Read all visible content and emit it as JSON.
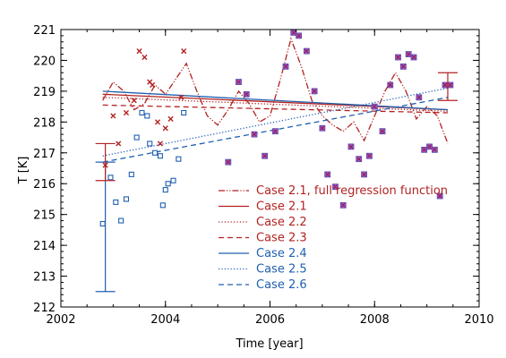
{
  "chart_data": {
    "type": "scatter",
    "xlabel": "Time [year]",
    "ylabel": "T [K]",
    "xlim": [
      2002,
      2010
    ],
    "ylim": [
      212,
      221
    ],
    "x_ticks": [
      2002,
      2004,
      2006,
      2008,
      2010
    ],
    "y_ticks": [
      212,
      213,
      214,
      215,
      216,
      217,
      218,
      219,
      220,
      221
    ],
    "x_minor_step": 0.5,
    "y_minor_step": 0.2,
    "legend_position": "bottom-right",
    "colors": {
      "red": "#b22222",
      "blue": "#2060b0",
      "magenta": "#a855c8"
    },
    "series": [
      {
        "name": "Case 2.1, full regression function",
        "kind": "line",
        "color": "#b22222",
        "dash": "dashdotdot",
        "x": [
          2002.8,
          2003.0,
          2003.2,
          2003.4,
          2003.6,
          2003.8,
          2004.0,
          2004.2,
          2004.4,
          2004.6,
          2004.8,
          2005.0,
          2005.2,
          2005.4,
          2005.6,
          2005.8,
          2006.0,
          2006.2,
          2006.4,
          2006.6,
          2006.8,
          2007.0,
          2007.2,
          2007.4,
          2007.6,
          2007.8,
          2008.0,
          2008.2,
          2008.4,
          2008.6,
          2008.8,
          2009.0,
          2009.2,
          2009.4
        ],
        "y": [
          218.7,
          219.3,
          219.0,
          218.4,
          218.6,
          219.2,
          218.9,
          219.4,
          219.9,
          219.0,
          218.2,
          217.9,
          218.4,
          219.0,
          218.6,
          218.0,
          218.2,
          219.4,
          220.7,
          219.8,
          218.7,
          218.2,
          217.9,
          217.7,
          218.0,
          217.4,
          218.2,
          219.0,
          219.6,
          219.0,
          218.1,
          218.5,
          218.2,
          217.3
        ]
      },
      {
        "name": "Case 2.1",
        "kind": "line",
        "color": "#b22222",
        "dash": "solid",
        "x": [
          2002.8,
          2009.4
        ],
        "y": [
          218.9,
          218.4
        ]
      },
      {
        "name": "Case 2.2",
        "kind": "line",
        "color": "#b22222",
        "dash": "dotted",
        "x": [
          2002.8,
          2009.4
        ],
        "y": [
          218.8,
          218.35
        ]
      },
      {
        "name": "Case 2.3",
        "kind": "line",
        "color": "#b22222",
        "dash": "dashed",
        "x": [
          2002.8,
          2009.4
        ],
        "y": [
          218.55,
          218.3
        ]
      },
      {
        "name": "Case 2.4",
        "kind": "line",
        "color": "#2060b0",
        "dash": "solid",
        "x": [
          2002.8,
          2009.4
        ],
        "y": [
          219.0,
          218.4
        ]
      },
      {
        "name": "Case 2.5",
        "kind": "line",
        "color": "#2060b0",
        "dash": "dotted",
        "x": [
          2002.8,
          2009.4
        ],
        "y": [
          216.9,
          219.1
        ]
      },
      {
        "name": "Case 2.6",
        "kind": "line",
        "color": "#2060b0",
        "dash": "dashed",
        "x": [
          2002.8,
          2009.4
        ],
        "y": [
          216.7,
          218.8
        ]
      }
    ],
    "points": {
      "red_x": {
        "marker": "x",
        "color": "#b22222",
        "x": [
          2002.85,
          2003.0,
          2003.1,
          2003.25,
          2003.4,
          2003.5,
          2003.6,
          2003.7,
          2003.75,
          2003.85,
          2003.9,
          2004.0,
          2004.1,
          2004.3,
          2004.35
        ],
        "y": [
          216.6,
          218.2,
          217.3,
          218.3,
          218.7,
          220.3,
          220.1,
          219.3,
          219.2,
          218.0,
          217.3,
          217.8,
          218.1,
          218.8,
          220.3
        ]
      },
      "blue_square": {
        "marker": "square",
        "color": "#2060b0",
        "x": [
          2002.8,
          2002.95,
          2003.05,
          2003.15,
          2003.25,
          2003.35,
          2003.45,
          2003.55,
          2003.65,
          2003.7,
          2003.8,
          2003.9,
          2003.95,
          2004.0,
          2004.05,
          2004.15,
          2004.25,
          2004.35
        ],
        "y": [
          214.7,
          216.2,
          215.4,
          214.8,
          215.5,
          216.3,
          217.5,
          218.3,
          218.2,
          217.3,
          217.0,
          216.9,
          215.3,
          215.8,
          216.0,
          216.1,
          216.8,
          218.3
        ]
      },
      "purple_filled": {
        "marker": "filled-square",
        "color": "#a855c8",
        "x": [
          2005.2,
          2005.4,
          2005.55,
          2005.7,
          2005.9,
          2006.1,
          2006.3,
          2006.45,
          2006.55,
          2006.7,
          2006.85,
          2007.0,
          2007.1,
          2007.25,
          2007.4,
          2007.55,
          2007.7,
          2007.8,
          2007.9,
          2008.0,
          2008.15,
          2008.3,
          2008.45,
          2008.55,
          2008.65,
          2008.75,
          2008.85,
          2008.95,
          2009.05,
          2009.15,
          2009.25,
          2009.35,
          2009.45
        ],
        "y": [
          216.7,
          219.3,
          218.9,
          217.6,
          216.9,
          217.7,
          219.8,
          220.9,
          220.8,
          220.3,
          219.0,
          217.8,
          216.3,
          215.9,
          215.3,
          217.2,
          216.8,
          216.3,
          216.9,
          218.5,
          217.7,
          219.2,
          220.1,
          219.8,
          220.2,
          220.1,
          218.8,
          217.1,
          217.2,
          217.1,
          215.6,
          219.2,
          219.2
        ]
      }
    },
    "errorbars": [
      {
        "x": 2002.85,
        "y_low": 212.5,
        "y_high": 216.7,
        "color": "#2060b0"
      },
      {
        "x": 2002.85,
        "y_low": 216.1,
        "y_high": 217.3,
        "color": "#b22222"
      },
      {
        "x": 2009.4,
        "y_low": 218.7,
        "y_high": 219.6,
        "color": "#b22222"
      }
    ]
  }
}
